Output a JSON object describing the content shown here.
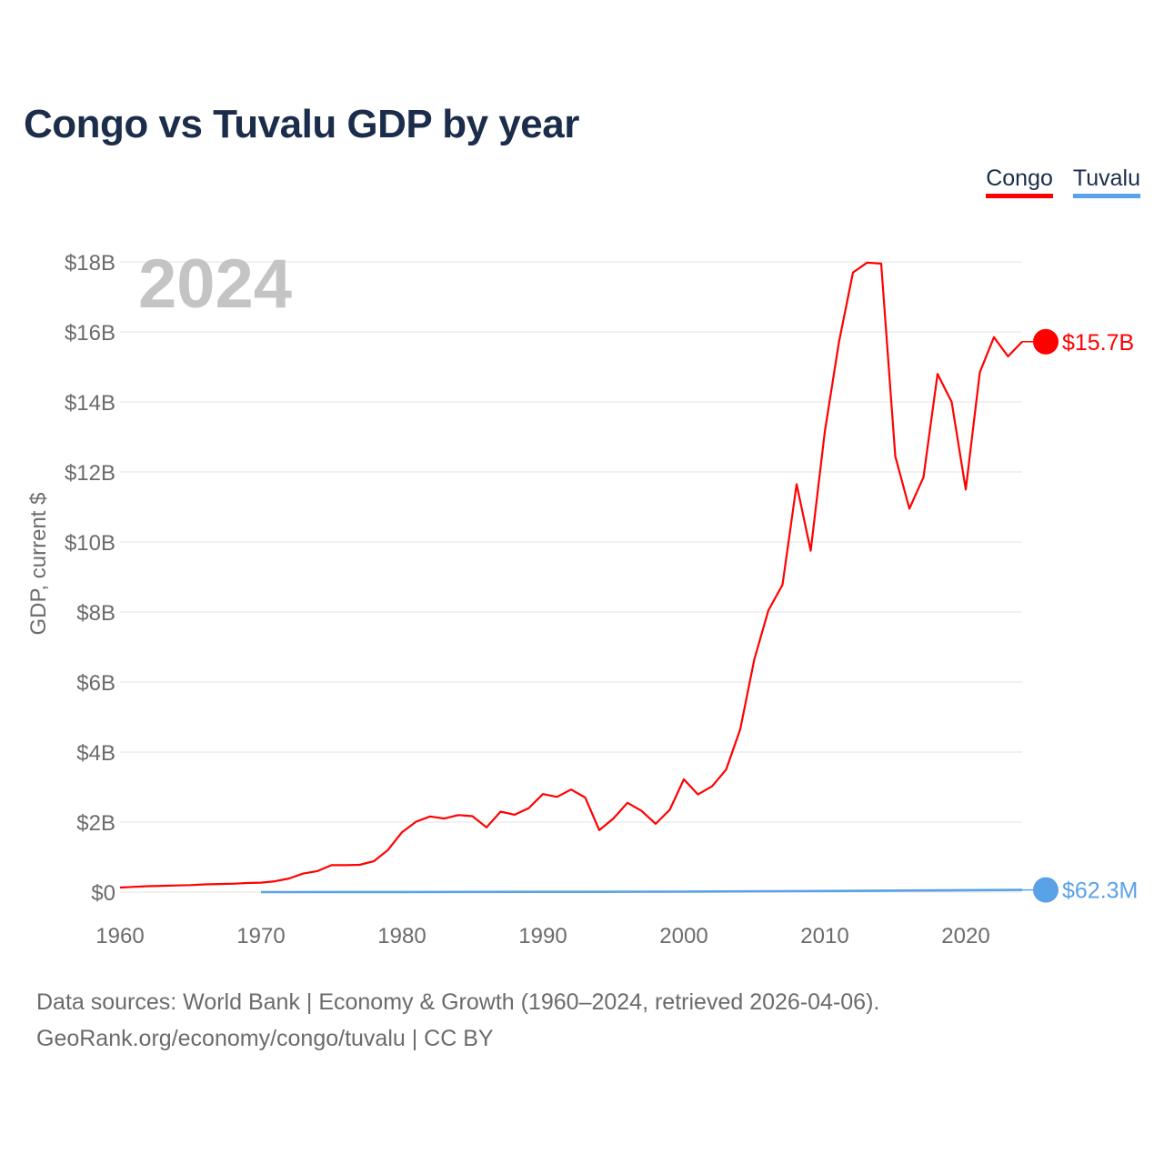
{
  "title": "Congo vs Tuvalu GDP by year",
  "year_watermark": "2024",
  "legend": [
    {
      "label": "Congo",
      "color": "#ff0000"
    },
    {
      "label": "Tuvalu",
      "color": "#5aa2e8"
    }
  ],
  "source": {
    "line1": "Data sources: World Bank | Economy & Growth (1960–2024, retrieved 2026-04-06).",
    "line2": "GeoRank.org/economy/congo/tuvalu | CC BY"
  },
  "chart_data": {
    "type": "line",
    "title": "Congo vs Tuvalu GDP by year",
    "xlabel": "",
    "ylabel": "GDP, current $",
    "xlim": [
      1960,
      2024
    ],
    "ylim": [
      0,
      18
    ],
    "y_unit": "billions USD",
    "y_ticks": [
      0,
      2,
      4,
      6,
      8,
      10,
      12,
      14,
      16,
      18
    ],
    "y_tick_labels": [
      "$0",
      "$2B",
      "$4B",
      "$6B",
      "$8B",
      "$10B",
      "$12B",
      "$14B",
      "$16B",
      "$18B"
    ],
    "x_ticks": [
      1960,
      1970,
      1980,
      1990,
      2000,
      2010,
      2020
    ],
    "x_tick_labels": [
      "1960",
      "1970",
      "1980",
      "1990",
      "2000",
      "2010",
      "2020"
    ],
    "grid": true,
    "legend_position": "top-right",
    "series": [
      {
        "name": "Congo",
        "color": "#ff0000",
        "end_label": "$15.7B",
        "x": [
          1960,
          1961,
          1962,
          1963,
          1964,
          1965,
          1966,
          1967,
          1968,
          1969,
          1970,
          1971,
          1972,
          1973,
          1974,
          1975,
          1976,
          1977,
          1978,
          1979,
          1980,
          1981,
          1982,
          1983,
          1984,
          1985,
          1986,
          1987,
          1988,
          1989,
          1990,
          1991,
          1992,
          1993,
          1994,
          1995,
          1996,
          1997,
          1998,
          1999,
          2000,
          2001,
          2002,
          2003,
          2004,
          2005,
          2006,
          2007,
          2008,
          2009,
          2010,
          2011,
          2012,
          2013,
          2014,
          2015,
          2016,
          2017,
          2018,
          2019,
          2020,
          2021,
          2022,
          2023,
          2024
        ],
        "values": [
          0.13,
          0.15,
          0.17,
          0.18,
          0.19,
          0.2,
          0.22,
          0.23,
          0.24,
          0.26,
          0.27,
          0.31,
          0.39,
          0.53,
          0.6,
          0.77,
          0.77,
          0.78,
          0.88,
          1.2,
          1.71,
          2.01,
          2.16,
          2.1,
          2.2,
          2.17,
          1.85,
          2.3,
          2.21,
          2.4,
          2.8,
          2.72,
          2.93,
          2.7,
          1.77,
          2.1,
          2.55,
          2.32,
          1.95,
          2.35,
          3.22,
          2.79,
          3.02,
          3.5,
          4.65,
          6.65,
          8.05,
          8.78,
          11.65,
          9.75,
          13.15,
          15.7,
          17.7,
          17.98,
          17.95,
          12.45,
          10.95,
          11.85,
          14.8,
          14.0,
          11.5,
          14.85,
          15.85,
          15.3,
          15.72
        ]
      },
      {
        "name": "Tuvalu",
        "color": "#5aa2e8",
        "end_label": "$62.3M",
        "x": [
          1970,
          1980,
          1990,
          2000,
          2010,
          2020,
          2024
        ],
        "values": [
          0.001,
          0.003,
          0.008,
          0.014,
          0.03,
          0.055,
          0.0623
        ]
      }
    ]
  }
}
